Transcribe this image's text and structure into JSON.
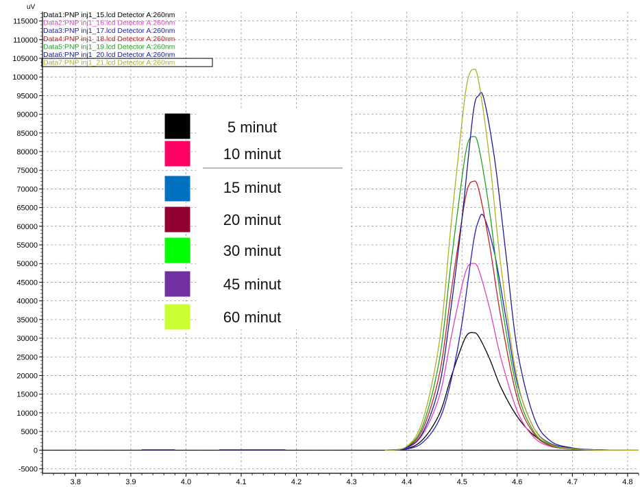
{
  "chart_data": {
    "type": "line",
    "y_unit": "uV",
    "xlim": [
      3.74,
      4.82
    ],
    "ylim": [
      -6200,
      117500
    ],
    "x_ticks": [
      3.8,
      3.9,
      4.0,
      4.1,
      4.2,
      4.3,
      4.4,
      4.5,
      4.6,
      4.7,
      4.8
    ],
    "x_tick_labels": [
      "3.8",
      "3.9",
      "4.0",
      "4.1",
      "4.2",
      "4.3",
      "4.4",
      "4.5",
      "4.6",
      "4.7",
      "4.8"
    ],
    "y_ticks": [
      -5000,
      0,
      5000,
      10000,
      15000,
      20000,
      25000,
      30000,
      35000,
      40000,
      45000,
      50000,
      55000,
      60000,
      65000,
      70000,
      75000,
      80000,
      85000,
      90000,
      95000,
      100000,
      105000,
      110000,
      115000
    ],
    "y_tick_labels": [
      "-5000",
      "0",
      "5000",
      "10000",
      "15000",
      "20000",
      "25000",
      "30000",
      "35000",
      "40000",
      "45000",
      "50000",
      "55000",
      "60000",
      "65000",
      "70000",
      "75000",
      "80000",
      "85000",
      "90000",
      "95000",
      "100000",
      "105000",
      "110000",
      "115000"
    ],
    "grid": true,
    "grid_style": "dashed",
    "legend_placement": "top-left",
    "series": [
      {
        "name": "Data1:PNP inj1_15.lcd Detector A:260nm",
        "color": "#000000",
        "x": [
          4.36,
          4.4,
          4.43,
          4.46,
          4.48,
          4.5,
          4.51,
          4.52,
          4.53,
          4.55,
          4.57,
          4.6,
          4.63,
          4.66,
          4.7,
          4.74,
          4.8,
          4.82
        ],
        "y": [
          0,
          400,
          3000,
          10000,
          19500,
          28000,
          31000,
          31500,
          30500,
          24500,
          17000,
          9000,
          4000,
          1500,
          500,
          100,
          0,
          0
        ]
      },
      {
        "name": "Data2:PNP inj1_16.lcd Detector A:260nm",
        "color": "#e040c0",
        "x": [
          4.36,
          4.4,
          4.43,
          4.46,
          4.48,
          4.5,
          4.51,
          4.52,
          4.53,
          4.55,
          4.57,
          4.6,
          4.63,
          4.66,
          4.7,
          4.74,
          4.8,
          4.82
        ],
        "y": [
          0,
          600,
          4500,
          15000,
          30000,
          44000,
          49000,
          50000,
          48500,
          38000,
          25000,
          10500,
          3500,
          1000,
          300,
          50,
          0,
          0
        ]
      },
      {
        "name": "Data3:PNP inj1_17.lcd Detector A:260nm",
        "color": "#2020c0",
        "x": [
          4.36,
          4.4,
          4.43,
          4.46,
          4.48,
          4.5,
          4.52,
          4.53,
          4.54,
          4.56,
          4.58,
          4.6,
          4.63,
          4.66,
          4.7,
          4.74,
          4.8,
          4.82
        ],
        "y": [
          0,
          300,
          2200,
          8500,
          18500,
          34000,
          55000,
          61500,
          62500,
          52000,
          35000,
          18000,
          6000,
          1800,
          500,
          100,
          0,
          0
        ]
      },
      {
        "name": "Data4:PNP inj1_18.lcd Detector A:260nm",
        "color": "#c02020",
        "x": [
          4.36,
          4.4,
          4.43,
          4.46,
          4.48,
          4.5,
          4.51,
          4.52,
          4.53,
          4.55,
          4.57,
          4.6,
          4.63,
          4.66,
          4.7,
          4.74,
          4.8,
          4.82
        ],
        "y": [
          0,
          800,
          6000,
          21000,
          42000,
          62000,
          70000,
          72000,
          70000,
          55000,
          36000,
          14000,
          4500,
          1200,
          300,
          50,
          0,
          0
        ]
      },
      {
        "name": "Data5:PNP inj1_19.lcd Detector A:260nm",
        "color": "#20a020",
        "x": [
          4.36,
          4.4,
          4.43,
          4.46,
          4.48,
          4.5,
          4.51,
          4.52,
          4.53,
          4.55,
          4.57,
          4.6,
          4.63,
          4.66,
          4.7,
          4.74,
          4.8,
          4.82
        ],
        "y": [
          0,
          900,
          7000,
          25000,
          50000,
          73000,
          82000,
          84000,
          81500,
          64000,
          41000,
          16000,
          5000,
          1400,
          300,
          50,
          0,
          0
        ]
      },
      {
        "name": "Data6:PNP inj1_20.lcd Detector A:260nm",
        "color": "#1a1a90",
        "x": [
          4.36,
          4.4,
          4.43,
          4.46,
          4.48,
          4.5,
          4.52,
          4.53,
          4.54,
          4.56,
          4.58,
          4.6,
          4.63,
          4.66,
          4.7,
          4.74,
          4.8,
          4.82
        ],
        "y": [
          0,
          700,
          5000,
          18000,
          38000,
          62000,
          90000,
          95000,
          94000,
          77000,
          52000,
          27000,
          9000,
          2500,
          600,
          100,
          0,
          0
        ]
      },
      {
        "name": "Data7:PNP inj1_21.lcd Detector A:260nm",
        "color": "#b0b020",
        "x": [
          4.36,
          4.4,
          4.43,
          4.46,
          4.48,
          4.5,
          4.51,
          4.52,
          4.53,
          4.55,
          4.57,
          4.6,
          4.63,
          4.66,
          4.7,
          4.74,
          4.8,
          4.82
        ],
        "y": [
          0,
          1000,
          8500,
          30000,
          60000,
          88000,
          99000,
          102000,
          99000,
          78000,
          50000,
          19000,
          6000,
          1600,
          400,
          50,
          0,
          0
        ]
      }
    ],
    "baseline_blips": [
      {
        "x0": 3.92,
        "x1": 3.98,
        "color": "#2020c0"
      },
      {
        "x0": 4.06,
        "x1": 4.18,
        "color": "#2020c0"
      }
    ]
  },
  "overlay_legend": {
    "items": [
      {
        "label": "5 minut",
        "color": "#000000"
      },
      {
        "label": "10 minut",
        "color": "#ff0066"
      },
      {
        "label": "15 minut",
        "color": "#0070c0"
      },
      {
        "label": "20 minut",
        "color": "#900030"
      },
      {
        "label": "30 minut",
        "color": "#00ff00"
      },
      {
        "label": "45 minut",
        "color": "#7030a0"
      },
      {
        "label": "60 minut",
        "color": "#ccff33"
      }
    ]
  }
}
